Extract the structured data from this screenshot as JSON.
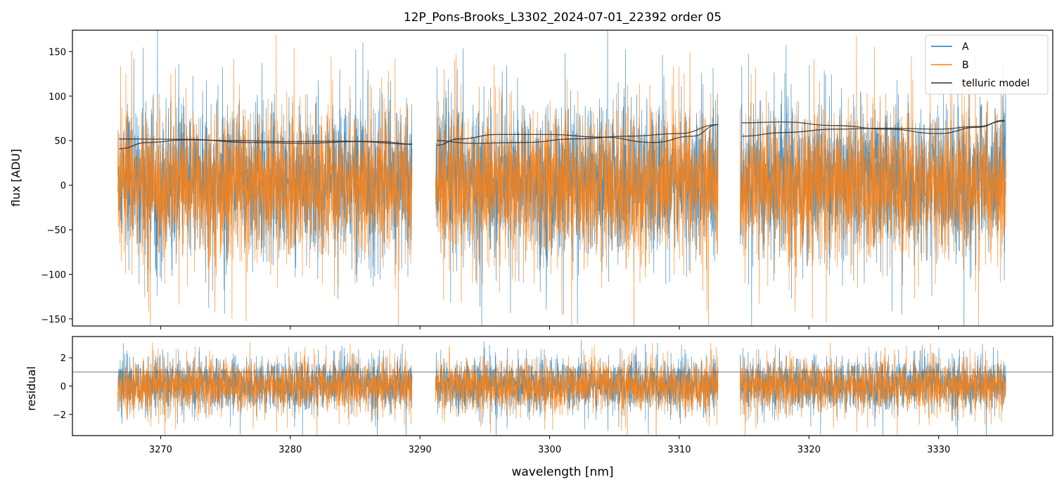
{
  "chart_data": [
    {
      "type": "line",
      "panel": "flux",
      "title": "12P_Pons-Brooks_L3302_2024-07-01_22392  order 05",
      "xlabel": "",
      "ylabel": "flux [ADU]",
      "xlim": [
        3263.2,
        3338.8
      ],
      "ylim": [
        -158,
        174
      ],
      "yticks": [
        -150,
        -100,
        -50,
        0,
        50,
        100,
        150
      ],
      "ytick_labels": [
        "−150",
        "−100",
        "−50",
        "0",
        "50",
        "100",
        "150"
      ],
      "xticks": [
        3270,
        3280,
        3290,
        3300,
        3310,
        3320,
        3330
      ],
      "legend": "top-right",
      "segments": [
        [
          3266.7,
          3289.4
        ],
        [
          3291.2,
          3313.0
        ],
        [
          3314.7,
          3335.2
        ]
      ],
      "series": [
        {
          "name": "A",
          "color": "#1f77b4",
          "kind": "noise",
          "level": 5,
          "sigma": 48
        },
        {
          "name": "B",
          "color": "#ff7f0e",
          "kind": "noise",
          "level": 0,
          "sigma": 48
        },
        {
          "name": "telluric model",
          "color": "#333333",
          "kind": "model",
          "curves": [
            [
              {
                "x": 3266.8,
                "y": 41
              },
              {
                "x": 3269,
                "y": 48
              },
              {
                "x": 3272,
                "y": 51
              },
              {
                "x": 3276,
                "y": 50
              },
              {
                "x": 3280,
                "y": 49
              },
              {
                "x": 3284,
                "y": 49.5
              },
              {
                "x": 3287,
                "y": 49
              },
              {
                "x": 3289.4,
                "y": 46
              }
            ],
            [
              {
                "x": 3266.8,
                "y": 52
              },
              {
                "x": 3272,
                "y": 51.5
              },
              {
                "x": 3277,
                "y": 48
              },
              {
                "x": 3281,
                "y": 47
              },
              {
                "x": 3285,
                "y": 49
              },
              {
                "x": 3289.4,
                "y": 46
              }
            ],
            [
              {
                "x": 3291.3,
                "y": 50
              },
              {
                "x": 3294,
                "y": 47
              },
              {
                "x": 3298,
                "y": 48
              },
              {
                "x": 3302,
                "y": 52
              },
              {
                "x": 3306,
                "y": 55
              },
              {
                "x": 3310,
                "y": 58
              },
              {
                "x": 3313,
                "y": 68
              }
            ],
            [
              {
                "x": 3291.3,
                "y": 45
              },
              {
                "x": 3293,
                "y": 52
              },
              {
                "x": 3296,
                "y": 57
              },
              {
                "x": 3300,
                "y": 57
              },
              {
                "x": 3304,
                "y": 54
              },
              {
                "x": 3308,
                "y": 48
              },
              {
                "x": 3311,
                "y": 55
              },
              {
                "x": 3313,
                "y": 68
              }
            ],
            [
              {
                "x": 3314.8,
                "y": 70
              },
              {
                "x": 3318,
                "y": 71
              },
              {
                "x": 3322,
                "y": 67
              },
              {
                "x": 3326,
                "y": 63
              },
              {
                "x": 3330,
                "y": 58
              },
              {
                "x": 3333,
                "y": 65
              },
              {
                "x": 3335.1,
                "y": 73
              }
            ],
            [
              {
                "x": 3314.8,
                "y": 55
              },
              {
                "x": 3318,
                "y": 59
              },
              {
                "x": 3322,
                "y": 63
              },
              {
                "x": 3326,
                "y": 64
              },
              {
                "x": 3330,
                "y": 63
              },
              {
                "x": 3333,
                "y": 66
              },
              {
                "x": 3335.1,
                "y": 72
              }
            ]
          ]
        }
      ]
    },
    {
      "type": "line",
      "panel": "residual",
      "title": "",
      "xlabel": "wavelength [nm]",
      "ylabel": "residual",
      "xlim": [
        3263.2,
        3338.8
      ],
      "ylim": [
        -3.5,
        3.5
      ],
      "yticks": [
        -2,
        0,
        2
      ],
      "ytick_labels": [
        "−2",
        "0",
        "2"
      ],
      "xticks": [
        3270,
        3280,
        3290,
        3300,
        3310,
        3320,
        3330
      ],
      "xtick_labels": [
        "3270",
        "3280",
        "3290",
        "3300",
        "3310",
        "3320",
        "3330"
      ],
      "reference_line": 1,
      "segments": [
        [
          3266.7,
          3289.4
        ],
        [
          3291.2,
          3313.0
        ],
        [
          3314.7,
          3335.2
        ]
      ],
      "series": [
        {
          "name": "A",
          "color": "#1f77b4",
          "kind": "noise",
          "level": 0.1,
          "sigma": 1.05
        },
        {
          "name": "B",
          "color": "#ff7f0e",
          "kind": "noise",
          "level": 0,
          "sigma": 1.05
        }
      ]
    }
  ]
}
